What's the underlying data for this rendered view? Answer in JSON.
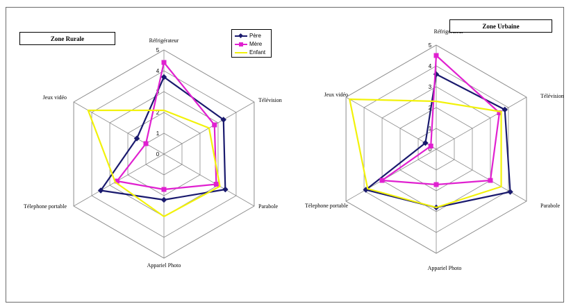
{
  "chart_data": [
    {
      "type": "radar",
      "title": "Zone Rurale",
      "axes": [
        "Réfrigérateur",
        "Télévision",
        "Parabole",
        "Appariel Photo",
        "Télephone portable",
        "Jeux vidéo"
      ],
      "rlim": [
        0,
        5
      ],
      "tick_labels": [
        "0",
        "1",
        "2",
        "3",
        "4",
        "5"
      ],
      "series": [
        {
          "name": "Père",
          "values": [
            3.7,
            3.3,
            3.4,
            2.2,
            3.5,
            1.5
          ],
          "color": "#1a1a6e",
          "marker": "diamond"
        },
        {
          "name": "Mère",
          "values": [
            4.4,
            2.8,
            2.9,
            1.7,
            2.6,
            1.0
          ],
          "color": "#e020d0",
          "marker": "square"
        },
        {
          "name": "Enfant",
          "values": [
            2.1,
            2.5,
            3.1,
            3.0,
            2.7,
            4.2
          ],
          "color": "#f2f20a",
          "marker": "none"
        }
      ],
      "legend_position": "top-right",
      "grid": true
    },
    {
      "type": "radar",
      "title": "Zone Urbaine",
      "axes": [
        "Réfrigérateur",
        "Télévision",
        "Parabole",
        "Appariel Photo",
        "Télephone portable",
        "Jeux vidéo"
      ],
      "rlim": [
        0,
        5
      ],
      "tick_labels": [
        "0",
        "1",
        "2",
        "3",
        "4",
        "5"
      ],
      "series": [
        {
          "name": "Père",
          "values": [
            3.6,
            3.8,
            4.1,
            2.8,
            3.9,
            0.6
          ],
          "color": "#1a1a6e",
          "marker": "diamond"
        },
        {
          "name": "Mère",
          "values": [
            4.5,
            3.5,
            3.0,
            1.7,
            3.0,
            0.3
          ],
          "color": "#e020d0",
          "marker": "square"
        },
        {
          "name": "Enfant",
          "values": [
            2.3,
            3.6,
            3.6,
            2.8,
            3.8,
            4.8
          ],
          "color": "#f2f20a",
          "marker": "none"
        }
      ],
      "legend_position": "none",
      "grid": true
    }
  ]
}
